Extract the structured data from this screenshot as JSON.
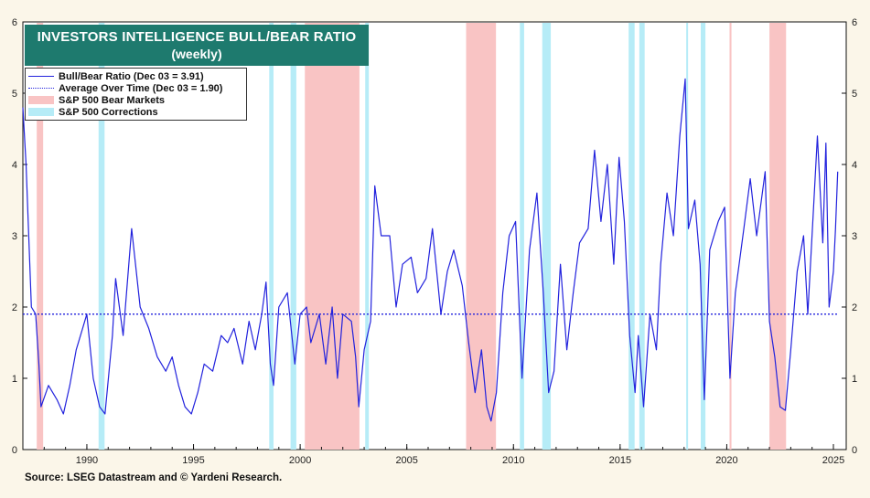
{
  "title": {
    "line1": "INVESTORS INTELLIGENCE BULL/BEAR RATIO",
    "line2": "(weekly)"
  },
  "legend": {
    "series": "Bull/Bear Ratio (Dec 03 = 3.91)",
    "average": "Average Over Time (Dec 03 = 1.90)",
    "bear": "S&P 500 Bear Markets",
    "correction": "S&P 500 Corrections"
  },
  "source": "Source: LSEG Datastream and © Yardeni Research.",
  "colors": {
    "line": "#2222dd",
    "bear": "#f9c4c4",
    "correction": "#b6ecf7",
    "title_bg": "#1e7a6e",
    "background": "#fbf6e9"
  },
  "chart_data": {
    "type": "line",
    "x_ticks": [
      "1990",
      "1995",
      "2000",
      "2005",
      "2010",
      "2015",
      "2020",
      "2025"
    ],
    "y_ticks": [
      "0",
      "1",
      "2",
      "3",
      "4",
      "5",
      "6"
    ],
    "xlim": [
      1987.0,
      2025.6
    ],
    "ylim": [
      0,
      6
    ],
    "average_line": 1.9,
    "bear_markets": [
      [
        1987.65,
        1987.95
      ],
      [
        2000.22,
        2002.78
      ],
      [
        2007.78,
        2009.18
      ],
      [
        2020.13,
        2020.22
      ],
      [
        2022.0,
        2022.78
      ]
    ],
    "corrections": [
      [
        1990.55,
        1990.83
      ],
      [
        1998.55,
        1998.75
      ],
      [
        1999.55,
        1999.82
      ],
      [
        2003.05,
        2003.22
      ],
      [
        2010.3,
        2010.5
      ],
      [
        2011.35,
        2011.75
      ],
      [
        2015.4,
        2015.68
      ],
      [
        2015.9,
        2016.15
      ],
      [
        2018.1,
        2018.15
      ],
      [
        2018.78,
        2019.0
      ]
    ],
    "series": [
      {
        "name": "Bull/Bear Ratio",
        "points": [
          [
            1987.0,
            4.8
          ],
          [
            1987.15,
            4.0
          ],
          [
            1987.4,
            2.0
          ],
          [
            1987.6,
            1.9
          ],
          [
            1987.75,
            1.2
          ],
          [
            1987.85,
            0.6
          ],
          [
            1988.2,
            0.9
          ],
          [
            1988.6,
            0.7
          ],
          [
            1988.9,
            0.5
          ],
          [
            1989.2,
            0.9
          ],
          [
            1989.5,
            1.4
          ],
          [
            1989.8,
            1.7
          ],
          [
            1990.0,
            1.9
          ],
          [
            1990.3,
            1.0
          ],
          [
            1990.6,
            0.6
          ],
          [
            1990.85,
            0.5
          ],
          [
            1991.2,
            1.6
          ],
          [
            1991.35,
            2.4
          ],
          [
            1991.7,
            1.6
          ],
          [
            1992.1,
            3.1
          ],
          [
            1992.5,
            2.0
          ],
          [
            1992.9,
            1.7
          ],
          [
            1993.3,
            1.3
          ],
          [
            1993.7,
            1.1
          ],
          [
            1994.0,
            1.3
          ],
          [
            1994.3,
            0.9
          ],
          [
            1994.6,
            0.6
          ],
          [
            1994.9,
            0.5
          ],
          [
            1995.2,
            0.8
          ],
          [
            1995.5,
            1.2
          ],
          [
            1995.9,
            1.1
          ],
          [
            1996.3,
            1.6
          ],
          [
            1996.6,
            1.5
          ],
          [
            1996.9,
            1.7
          ],
          [
            1997.3,
            1.2
          ],
          [
            1997.6,
            1.8
          ],
          [
            1997.9,
            1.4
          ],
          [
            1998.2,
            1.9
          ],
          [
            1998.4,
            2.35
          ],
          [
            1998.6,
            1.2
          ],
          [
            1998.75,
            0.9
          ],
          [
            1999.0,
            2.0
          ],
          [
            1999.4,
            2.2
          ],
          [
            1999.75,
            1.2
          ],
          [
            2000.0,
            1.9
          ],
          [
            2000.3,
            2.0
          ],
          [
            2000.5,
            1.5
          ],
          [
            2000.9,
            1.9
          ],
          [
            2001.2,
            1.2
          ],
          [
            2001.5,
            2.0
          ],
          [
            2001.75,
            1.0
          ],
          [
            2002.0,
            1.9
          ],
          [
            2002.4,
            1.8
          ],
          [
            2002.6,
            1.3
          ],
          [
            2002.75,
            0.6
          ],
          [
            2003.0,
            1.4
          ],
          [
            2003.3,
            1.8
          ],
          [
            2003.5,
            3.7
          ],
          [
            2003.8,
            3.0
          ],
          [
            2004.2,
            3.0
          ],
          [
            2004.5,
            2.0
          ],
          [
            2004.8,
            2.6
          ],
          [
            2005.2,
            2.7
          ],
          [
            2005.5,
            2.2
          ],
          [
            2005.9,
            2.4
          ],
          [
            2006.2,
            3.1
          ],
          [
            2006.6,
            1.9
          ],
          [
            2006.9,
            2.5
          ],
          [
            2007.2,
            2.8
          ],
          [
            2007.6,
            2.3
          ],
          [
            2007.9,
            1.5
          ],
          [
            2008.2,
            0.8
          ],
          [
            2008.5,
            1.4
          ],
          [
            2008.75,
            0.6
          ],
          [
            2008.95,
            0.4
          ],
          [
            2009.2,
            0.8
          ],
          [
            2009.5,
            2.2
          ],
          [
            2009.8,
            3.0
          ],
          [
            2010.1,
            3.2
          ],
          [
            2010.4,
            1.0
          ],
          [
            2010.75,
            2.8
          ],
          [
            2011.1,
            3.6
          ],
          [
            2011.4,
            2.2
          ],
          [
            2011.65,
            0.8
          ],
          [
            2011.9,
            1.1
          ],
          [
            2012.2,
            2.6
          ],
          [
            2012.5,
            1.4
          ],
          [
            2012.8,
            2.2
          ],
          [
            2013.1,
            2.9
          ],
          [
            2013.5,
            3.1
          ],
          [
            2013.8,
            4.2
          ],
          [
            2014.1,
            3.2
          ],
          [
            2014.4,
            4.0
          ],
          [
            2014.7,
            2.6
          ],
          [
            2014.95,
            4.1
          ],
          [
            2015.2,
            3.2
          ],
          [
            2015.45,
            1.6
          ],
          [
            2015.7,
            0.8
          ],
          [
            2015.85,
            1.6
          ],
          [
            2016.1,
            0.6
          ],
          [
            2016.4,
            1.9
          ],
          [
            2016.7,
            1.4
          ],
          [
            2016.9,
            2.6
          ],
          [
            2017.2,
            3.6
          ],
          [
            2017.5,
            3.0
          ],
          [
            2017.8,
            4.4
          ],
          [
            2018.05,
            5.2
          ],
          [
            2018.2,
            3.1
          ],
          [
            2018.5,
            3.5
          ],
          [
            2018.75,
            2.6
          ],
          [
            2018.95,
            0.7
          ],
          [
            2019.2,
            2.8
          ],
          [
            2019.6,
            3.2
          ],
          [
            2019.9,
            3.4
          ],
          [
            2020.15,
            1.0
          ],
          [
            2020.4,
            2.2
          ],
          [
            2020.8,
            3.1
          ],
          [
            2021.1,
            3.8
          ],
          [
            2021.4,
            3.0
          ],
          [
            2021.8,
            3.9
          ],
          [
            2022.0,
            1.8
          ],
          [
            2022.25,
            1.3
          ],
          [
            2022.5,
            0.6
          ],
          [
            2022.75,
            0.55
          ],
          [
            2023.0,
            1.4
          ],
          [
            2023.3,
            2.5
          ],
          [
            2023.6,
            3.0
          ],
          [
            2023.8,
            1.9
          ],
          [
            2024.05,
            3.3
          ],
          [
            2024.25,
            4.4
          ],
          [
            2024.5,
            2.9
          ],
          [
            2024.65,
            4.3
          ],
          [
            2024.8,
            2.0
          ],
          [
            2025.0,
            2.5
          ],
          [
            2025.1,
            3.1
          ],
          [
            2025.2,
            3.9
          ]
        ]
      }
    ]
  }
}
